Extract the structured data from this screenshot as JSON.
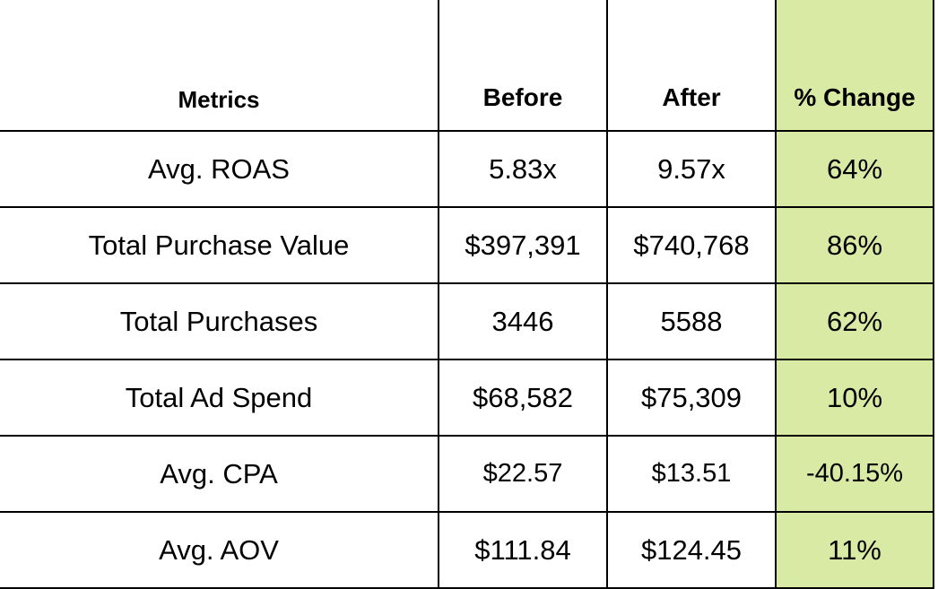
{
  "chart_data": {
    "type": "table",
    "columns": [
      "Metrics",
      "Before",
      "After",
      "% Change"
    ],
    "rows": [
      [
        "Avg. ROAS",
        "5.83x",
        "9.57x",
        "64%"
      ],
      [
        "Total Purchase Value",
        "$397,391",
        "$740,768",
        "86%"
      ],
      [
        "Total Purchases",
        "3446",
        "5588",
        "62%"
      ],
      [
        "Total Ad Spend",
        "$68,582",
        "$75,309",
        "10%"
      ],
      [
        "Avg. CPA",
        "$22.57",
        "$13.51",
        "-40.15%"
      ],
      [
        "Avg. AOV",
        "$111.84",
        "$124.45",
        "11%"
      ]
    ],
    "highlight_column_color": "#d9eaa4",
    "grid": true
  }
}
